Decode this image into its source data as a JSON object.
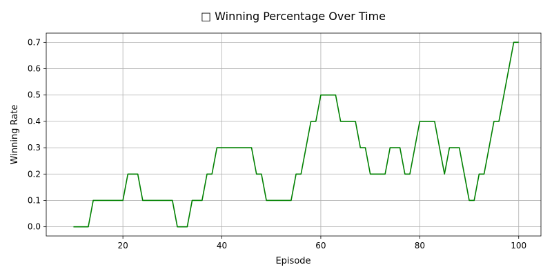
{
  "chart_data": {
    "type": "line",
    "title": "□ Winning Percentage Over Time",
    "xlabel": "Episode",
    "ylabel": "Winning Rate",
    "xlim": [
      4.5,
      104.5
    ],
    "ylim": [
      -0.035,
      0.735
    ],
    "xticks": [
      20,
      40,
      60,
      80,
      100
    ],
    "yticks": [
      0.0,
      0.1,
      0.2,
      0.3,
      0.4,
      0.5,
      0.6,
      0.7
    ],
    "ytick_labels": [
      "0.0",
      "0.1",
      "0.2",
      "0.3",
      "0.4",
      "0.5",
      "0.6",
      "0.7"
    ],
    "grid": true,
    "line_color": "#008000",
    "series": [
      {
        "x": [
          10,
          11,
          12,
          13,
          14,
          15,
          16,
          17,
          18,
          19,
          20,
          21,
          22,
          23,
          24,
          25,
          26,
          27,
          28,
          29,
          30,
          31,
          32,
          33,
          34,
          35,
          36,
          37,
          38,
          39,
          40,
          41,
          42,
          43,
          44,
          45,
          46,
          47,
          48,
          49,
          50,
          51,
          52,
          53,
          54,
          55,
          56,
          57,
          58,
          59,
          60,
          61,
          62,
          63,
          64,
          65,
          66,
          67,
          68,
          69,
          70,
          71,
          72,
          73,
          74,
          75,
          76,
          77,
          78,
          79,
          80,
          81,
          82,
          83,
          84,
          85,
          86,
          87,
          88,
          89,
          90,
          91,
          92,
          93,
          94,
          95,
          96,
          97,
          98,
          99,
          100
        ],
        "values": [
          0.0,
          0.0,
          0.0,
          0.0,
          0.1,
          0.1,
          0.1,
          0.1,
          0.1,
          0.1,
          0.1,
          0.2,
          0.2,
          0.2,
          0.1,
          0.1,
          0.1,
          0.1,
          0.1,
          0.1,
          0.1,
          0.0,
          0.0,
          0.0,
          0.1,
          0.1,
          0.1,
          0.2,
          0.2,
          0.3,
          0.3,
          0.3,
          0.3,
          0.3,
          0.3,
          0.3,
          0.3,
          0.2,
          0.2,
          0.1,
          0.1,
          0.1,
          0.1,
          0.1,
          0.1,
          0.2,
          0.2,
          0.3,
          0.4,
          0.4,
          0.5,
          0.5,
          0.5,
          0.5,
          0.4,
          0.4,
          0.4,
          0.4,
          0.3,
          0.3,
          0.2,
          0.2,
          0.2,
          0.2,
          0.3,
          0.3,
          0.3,
          0.2,
          0.2,
          0.3,
          0.4,
          0.4,
          0.4,
          0.4,
          0.3,
          0.2,
          0.3,
          0.3,
          0.3,
          0.2,
          0.1,
          0.1,
          0.2,
          0.2,
          0.3,
          0.4,
          0.4,
          0.5,
          0.6,
          0.7,
          0.7
        ]
      }
    ]
  }
}
